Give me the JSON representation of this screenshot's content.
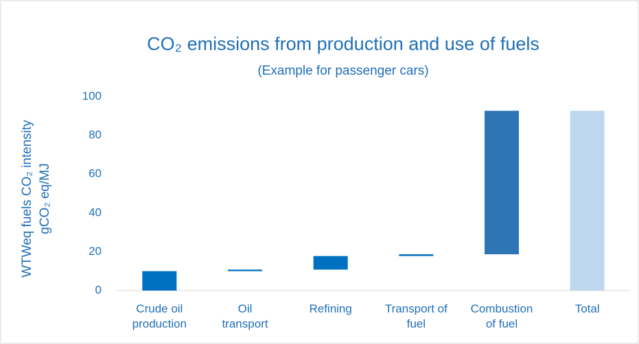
{
  "chart_data": {
    "type": "waterfall",
    "title": "CO₂ emissions from production and use of fuels",
    "subtitle": "(Example for passenger cars)",
    "y_label": [
      "WTWeq fuels CO₂ intensity",
      "gCO₂ eq/MJ"
    ],
    "categories": [
      "Crude oil production",
      "Oil transport",
      "Refining",
      "Transport of fuel",
      "Combustion of fuel",
      "Total"
    ],
    "values": [
      10,
      0.8,
      7,
      0.9,
      74,
      92.7
    ],
    "total": [
      false,
      false,
      false,
      false,
      false,
      true
    ],
    "colors": [
      "#0070c0",
      "#0070c0",
      "#0070c0",
      "#0070c0",
      "#2e75b6",
      "#bdd7ee"
    ],
    "ylim": [
      0,
      100
    ],
    "yticks": [
      0,
      20,
      40,
      60,
      80,
      100
    ],
    "grid": false
  }
}
